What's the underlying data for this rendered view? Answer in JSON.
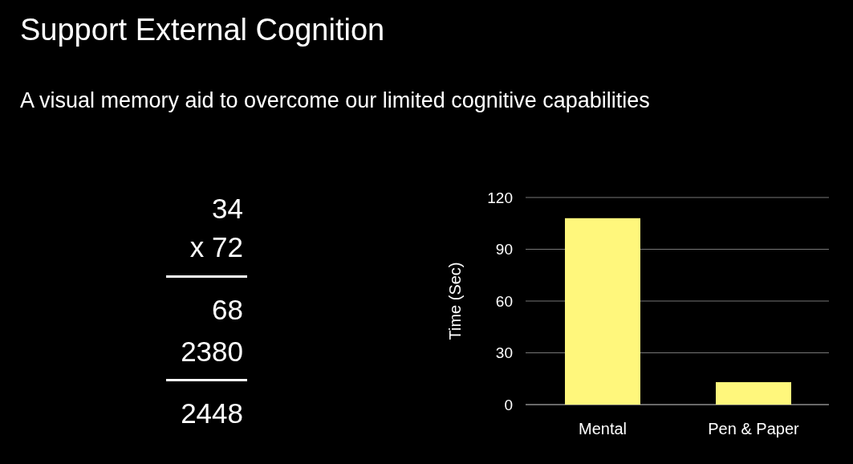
{
  "chart_data": {
    "type": "bar",
    "title": "Support External Cognition",
    "subtitle": "A visual memory aid to overcome our limited cognitive capabilities",
    "ylabel": "Time (Sec)",
    "categories": [
      "Mental",
      "Pen & Paper"
    ],
    "values": [
      108,
      13
    ],
    "color": "#fff77c",
    "ylim": [
      0,
      120
    ],
    "yticks": [
      0,
      30,
      60,
      90,
      120
    ],
    "grid": "y",
    "annotations": [
      "34",
      "x 72",
      "68",
      "2380",
      "2448"
    ]
  }
}
